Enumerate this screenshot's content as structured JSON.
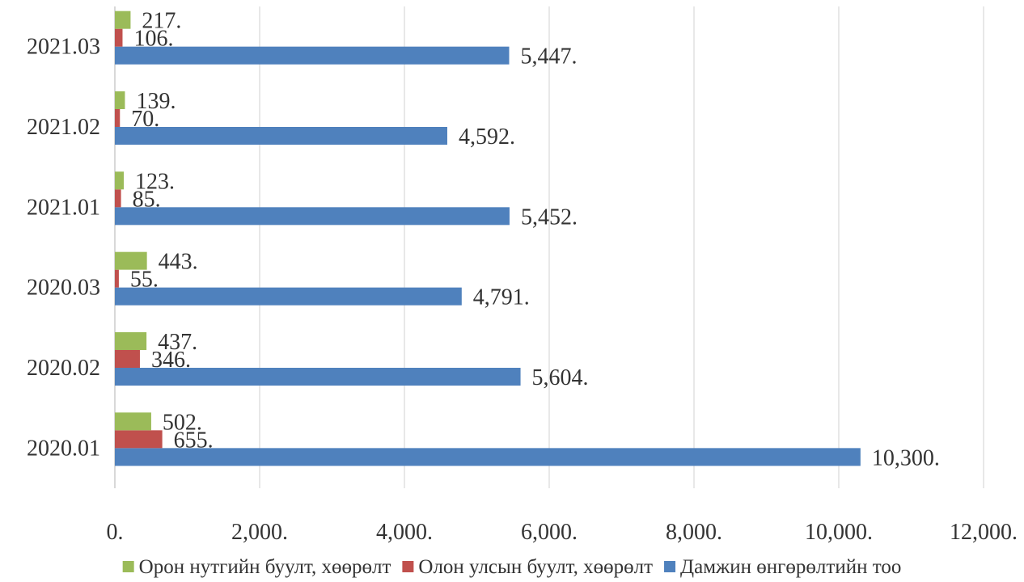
{
  "chart_data": {
    "type": "bar",
    "orientation": "horizontal",
    "title": "",
    "xlabel": "",
    "ylabel": "",
    "categories": [
      "2020.01",
      "2020.02",
      "2020.03",
      "2021.01",
      "2021.02",
      "2021.03"
    ],
    "series": [
      {
        "name": "Дамжин өнгөрөлтийн тоо",
        "color": "#4f81bd",
        "values": [
          10300,
          5604,
          4791,
          5452,
          4592,
          5447
        ],
        "labels": [
          "10,300.",
          "5,604.",
          "4,791.",
          "5,452.",
          "4,592.",
          "5,447."
        ]
      },
      {
        "name": "Олон улсын буулт, хөөрөлт",
        "color": "#c0504d",
        "values": [
          655,
          346,
          55,
          85,
          70,
          106
        ],
        "labels": [
          "655.",
          "346.",
          "55.",
          "85.",
          "70.",
          "106."
        ]
      },
      {
        "name": "Орон нутгийн буулт, хөөрөлт",
        "color": "#9bbb59",
        "values": [
          502,
          437,
          443,
          123,
          139,
          217
        ],
        "labels": [
          "502.",
          "437.",
          "443.",
          "123.",
          "139.",
          "217."
        ]
      }
    ],
    "xlim": [
      0,
      12000
    ],
    "x_ticks": [
      0,
      2000,
      4000,
      6000,
      8000,
      10000,
      12000
    ],
    "x_tick_labels": [
      "0.",
      "2,000.",
      "4,000.",
      "6,000.",
      "8,000.",
      "10,000.",
      "12,000."
    ],
    "grid": "vertical",
    "legend": {
      "position": "bottom",
      "order": [
        "Орон нутгийн буулт, хөөрөлт",
        "Олон улсын буулт, хөөрөлт",
        "Дамжин өнгөрөлтийн тоо"
      ]
    }
  }
}
